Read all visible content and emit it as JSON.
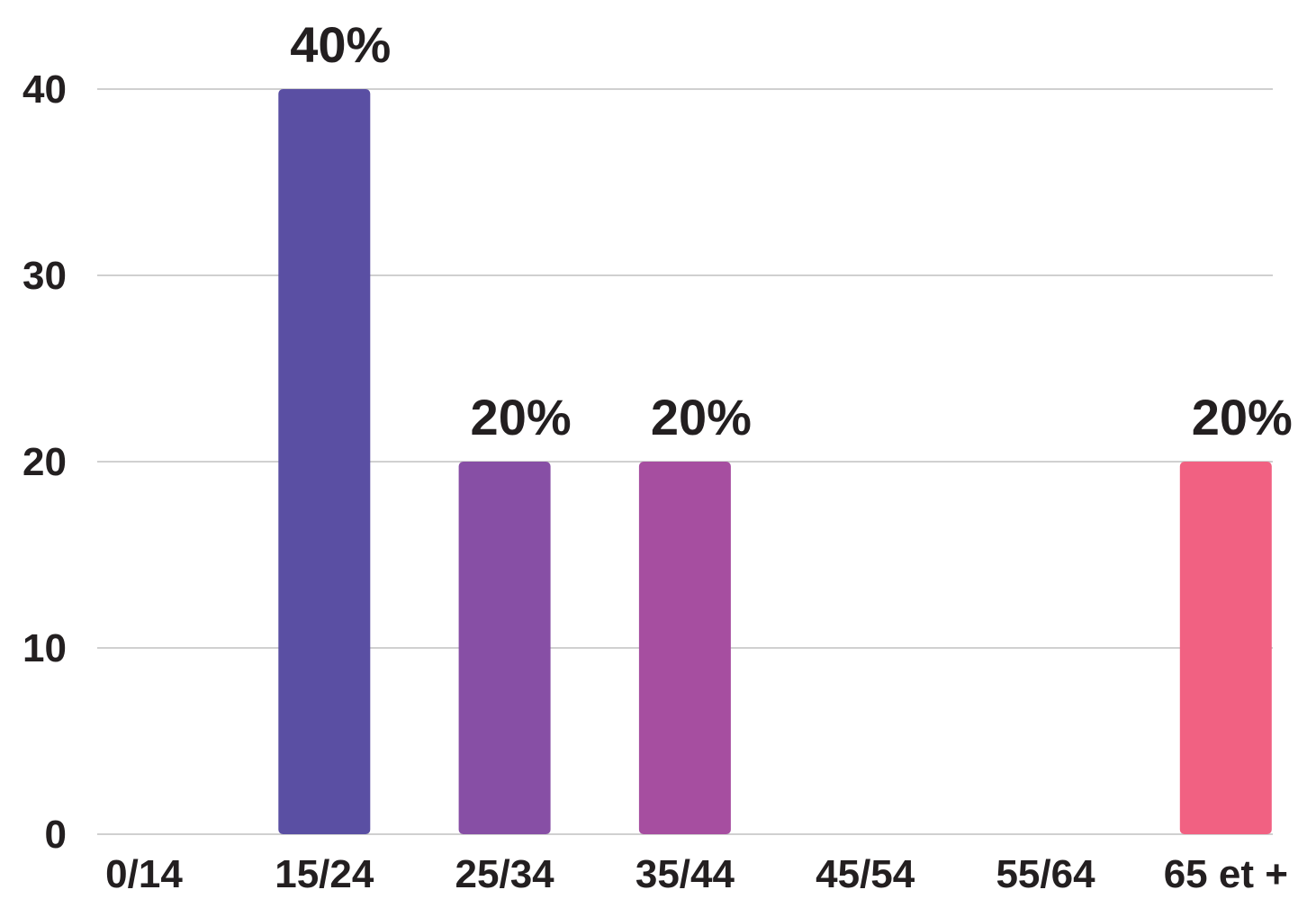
{
  "chart_data": {
    "type": "bar",
    "categories": [
      "0/14",
      "15/24",
      "25/34",
      "35/44",
      "45/54",
      "55/64",
      "65 et +"
    ],
    "values": [
      0,
      40,
      20,
      20,
      0,
      0,
      20
    ],
    "data_labels": [
      "",
      "40%",
      "20%",
      "20%",
      "",
      "",
      "20%"
    ],
    "bar_colors": [
      "#5a4fa3",
      "#5a4fa3",
      "#874fa5",
      "#a64ea0",
      "#c95490",
      "#e05a86",
      "#f16182"
    ],
    "title": "",
    "xlabel": "",
    "ylabel": "",
    "ylim": [
      0,
      40
    ],
    "yticks": [
      "0",
      "10",
      "20",
      "30",
      "40"
    ],
    "grid": true,
    "legend": "none"
  }
}
